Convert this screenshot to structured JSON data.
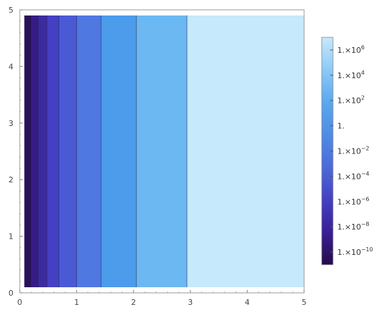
{
  "chart_data": {
    "type": "heatmap",
    "title": "",
    "xlabel": "",
    "ylabel": "",
    "xlim": [
      0,
      5
    ],
    "ylim": [
      0,
      5
    ],
    "x_ticks": [
      "0",
      "1",
      "2",
      "3",
      "4",
      "5"
    ],
    "y_ticks": [
      "0",
      "1",
      "2",
      "3",
      "4",
      "5"
    ],
    "bands": [
      {
        "x_from": 0.08,
        "x_to": 0.2,
        "color": "#2a1159"
      },
      {
        "x_from": 0.2,
        "x_to": 0.33,
        "color": "#361b84"
      },
      {
        "x_from": 0.33,
        "x_to": 0.48,
        "color": "#3d2aa3"
      },
      {
        "x_from": 0.48,
        "x_to": 0.69,
        "color": "#4340c4"
      },
      {
        "x_from": 0.69,
        "x_to": 1.0,
        "color": "#4a5ad4"
      },
      {
        "x_from": 1.0,
        "x_to": 1.43,
        "color": "#4f78e0"
      },
      {
        "x_from": 1.43,
        "x_to": 2.05,
        "color": "#4c9ceb"
      },
      {
        "x_from": 2.05,
        "x_to": 2.94,
        "color": "#6cb8f2"
      },
      {
        "x_from": 2.94,
        "x_to": 5.0,
        "color": "#c6e9fb"
      }
    ],
    "colorbar": {
      "scale": "log",
      "tick_labels": [
        {
          "mantissa": "1.×10",
          "exponent": "6"
        },
        {
          "mantissa": "1.×10",
          "exponent": "4"
        },
        {
          "mantissa": "1.×10",
          "exponent": "2"
        },
        {
          "mantissa": "1.",
          "exponent": ""
        },
        {
          "mantissa": "1.×10",
          "exponent": "−2"
        },
        {
          "mantissa": "1.×10",
          "exponent": "−4"
        },
        {
          "mantissa": "1.×10",
          "exponent": "−6"
        },
        {
          "mantissa": "1.×10",
          "exponent": "−8"
        },
        {
          "mantissa": "1.×10",
          "exponent": "−10"
        }
      ],
      "log_range": [
        -11,
        7
      ],
      "gradient": [
        "#250c4a",
        "#3a1f94",
        "#4440c4",
        "#4d6ad9",
        "#4f8ce6",
        "#5aa8ef",
        "#8ccaf6",
        "#c6e9fb"
      ]
    }
  }
}
